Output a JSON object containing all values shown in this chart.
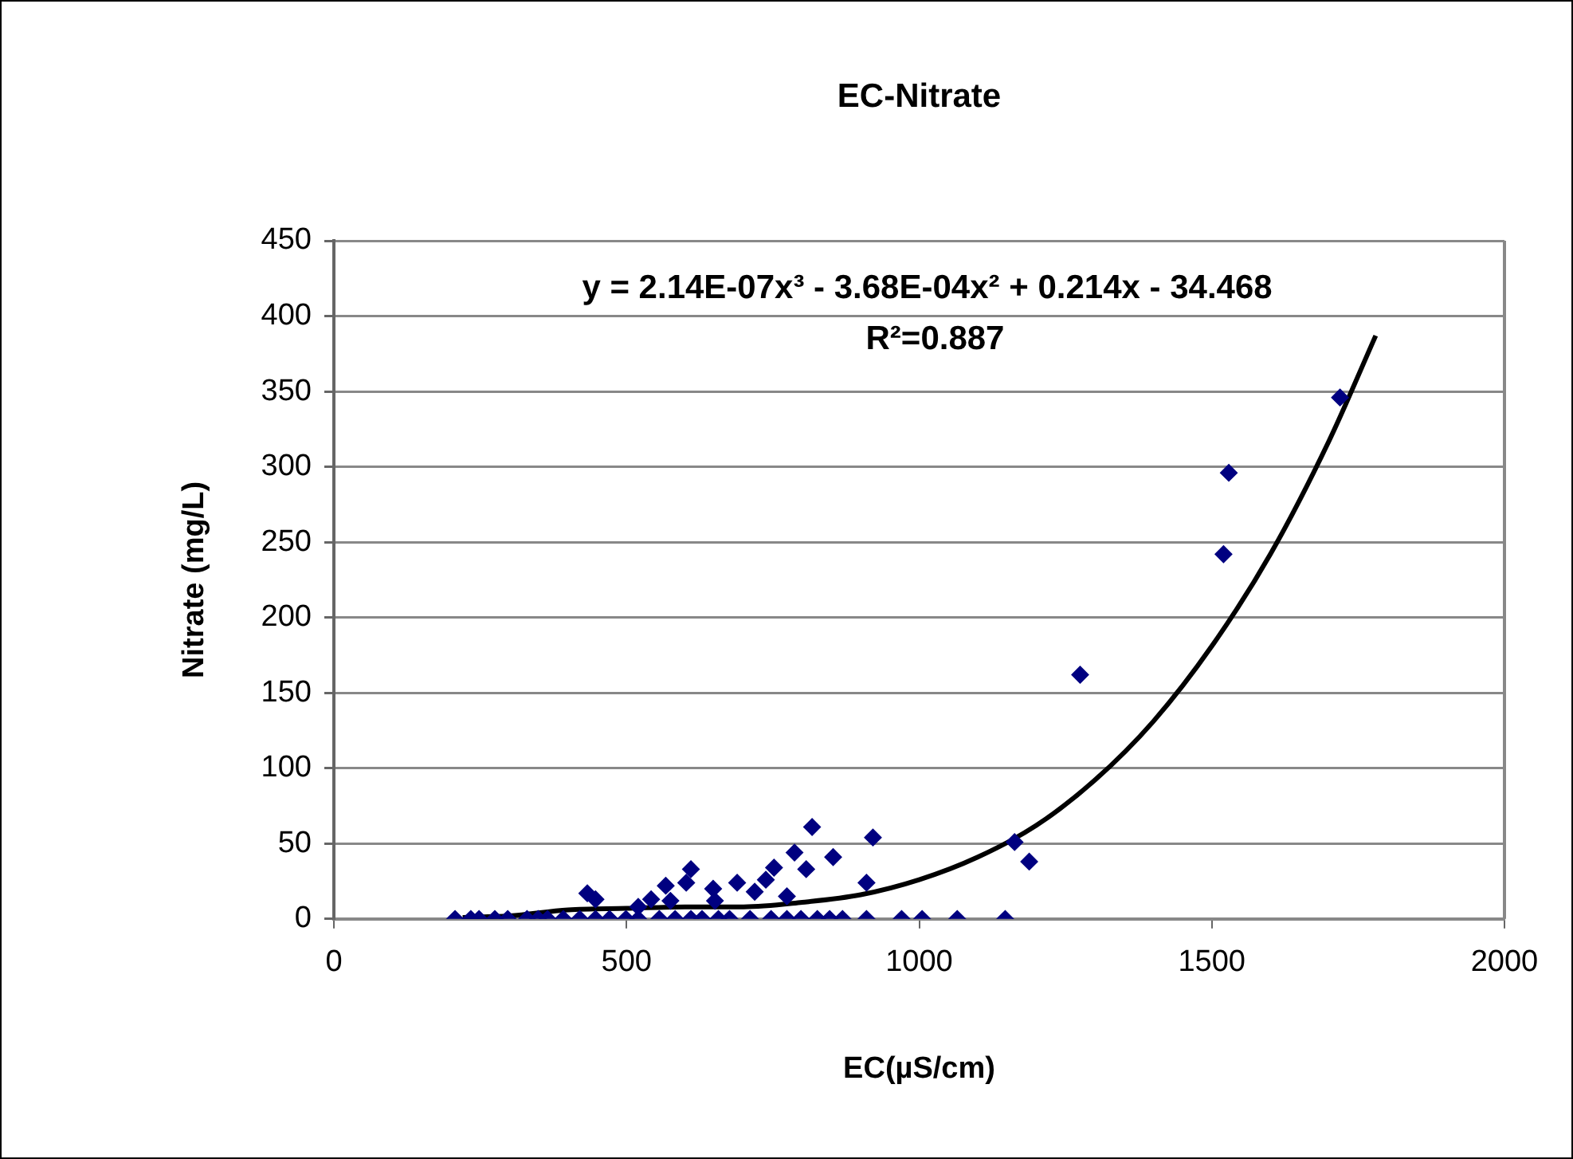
{
  "chart_data": {
    "type": "scatter",
    "title": "EC-Nitrate",
    "xlabel": "EC(µS/cm)",
    "ylabel": "Nitrate (mg/L)",
    "annotations": [
      "y = 2.14E-07x³ - 3.68E-04x² + 0.214x - 34.468",
      "R²=0.887"
    ],
    "xlim": [
      0,
      2000
    ],
    "xticks": [
      0,
      500,
      1000,
      1500,
      2000
    ],
    "ylim": [
      0,
      450
    ],
    "yticks": [
      0,
      50,
      100,
      150,
      200,
      250,
      300,
      350,
      400,
      450
    ],
    "grid": "y",
    "legend": false,
    "marker": "diamond",
    "series": [
      {
        "color": "#000080",
        "x": [
          207,
          234,
          248,
          275,
          297,
          330,
          349,
          365,
          392,
          420,
          447,
          471,
          499,
          520,
          556,
          583,
          610,
          629,
          657,
          676,
          711,
          747,
          774,
          798,
          826,
          847,
          869,
          910,
          970,
          1005,
          1065,
          1147,
          433,
          447,
          542,
          567,
          610,
          602,
          648,
          651,
          689,
          719,
          738,
          752,
          787,
          807,
          817,
          853,
          921,
          910,
          774,
          575,
          520,
          1163,
          1188,
          1275,
          1520,
          1529,
          1719
        ],
        "values": [
          0,
          0,
          0,
          0,
          0,
          0,
          0,
          0,
          0,
          0,
          0,
          0,
          0,
          0,
          0,
          0,
          0,
          0,
          0,
          0,
          0,
          0,
          0,
          0,
          0,
          0,
          0,
          0,
          0,
          0,
          0,
          0,
          17,
          13,
          13,
          22,
          33,
          24,
          20,
          12,
          24,
          18,
          26,
          34,
          44,
          33,
          61,
          41,
          54,
          24,
          15,
          12,
          8,
          51,
          38,
          162,
          242,
          296,
          346
        ]
      },
      {
        "type": "line",
        "color": "#000000",
        "marker": "none",
        "x": [
          220,
          300,
          400,
          500,
          600,
          700,
          800,
          900,
          1000,
          1100,
          1200,
          1300,
          1400,
          1500,
          1600,
          1700,
          1780
        ],
        "values": [
          1,
          2,
          6,
          7,
          8,
          8,
          11,
          16,
          26,
          41,
          62,
          92,
          131,
          181,
          242,
          317,
          387
        ]
      }
    ]
  }
}
